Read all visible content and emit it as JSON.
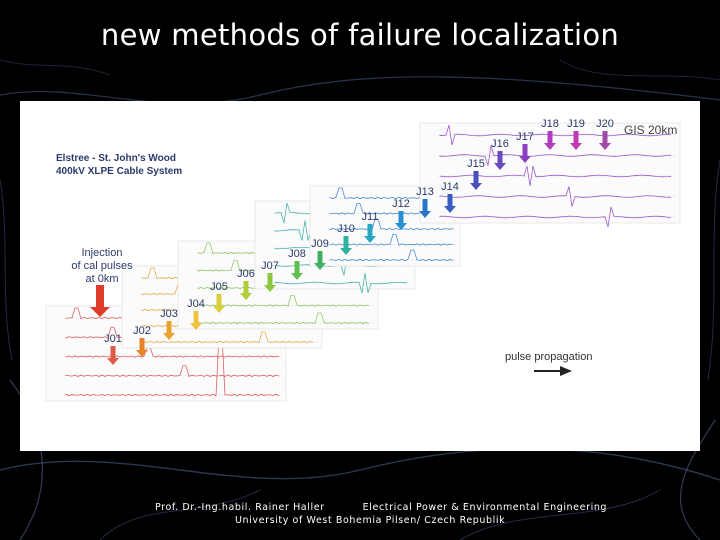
{
  "slide": {
    "title": "new methods of failure localization",
    "footer_author": "Prof. Dr.-Ing.habil. Rainer Haller",
    "footer_department": "Electrical Power & Environmental Engineering",
    "footer_university": "University of West Bohemia Pilsen/ Czech Republik"
  },
  "figure": {
    "system_title_line1": "Elstree - St. John's Wood",
    "system_title_line2": "400kV XLPE Cable System",
    "injection_line1": "Injection",
    "injection_line2": "of cal pulses",
    "injection_line3": "at 0km",
    "gis_label": "GIS 20km",
    "propagation_label": "pulse propagation",
    "joints": [
      "J01",
      "J02",
      "J03",
      "J04",
      "J05",
      "J06",
      "J07",
      "J08",
      "J09",
      "J10",
      "J11",
      "J12",
      "J13",
      "J14",
      "J15",
      "J16",
      "J17",
      "J18",
      "J19",
      "J20"
    ],
    "colors": {
      "injection": "#e03a2a",
      "gis": "#555555",
      "title_text": "#2b3a6b",
      "background": "#000000"
    }
  }
}
